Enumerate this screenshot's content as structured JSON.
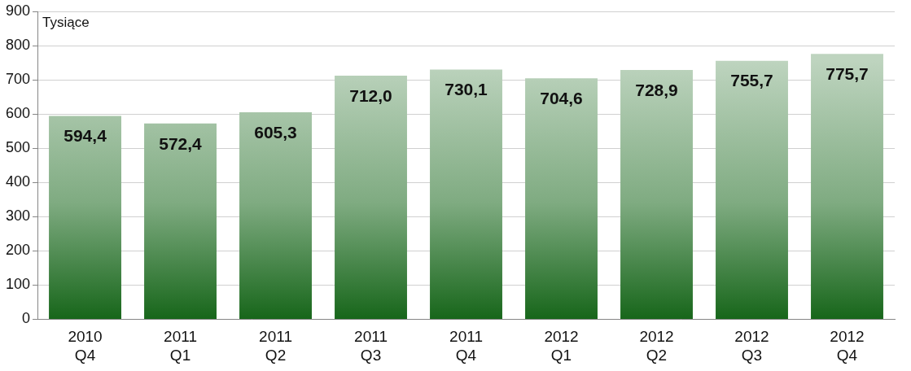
{
  "chart_data": {
    "type": "bar",
    "y_label": "Tysiące",
    "categories": [
      [
        "2010",
        "Q4"
      ],
      [
        "2011",
        "Q1"
      ],
      [
        "2011",
        "Q2"
      ],
      [
        "2011",
        "Q3"
      ],
      [
        "2011",
        "Q4"
      ],
      [
        "2012",
        "Q1"
      ],
      [
        "2012",
        "Q2"
      ],
      [
        "2012",
        "Q3"
      ],
      [
        "2012",
        "Q4"
      ]
    ],
    "values": [
      594.4,
      572.4,
      605.3,
      712.0,
      730.1,
      704.6,
      728.9,
      755.7,
      775.7
    ],
    "value_labels": [
      "594,4",
      "572,4",
      "605,3",
      "712,0",
      "730,1",
      "704,6",
      "728,9",
      "755,7",
      "775,7"
    ],
    "data_labels": true,
    "color": "#17661a",
    "ylim": [
      0,
      900
    ],
    "yticks": [
      0,
      100,
      200,
      300,
      400,
      500,
      600,
      700,
      800,
      900
    ],
    "grid": true
  }
}
